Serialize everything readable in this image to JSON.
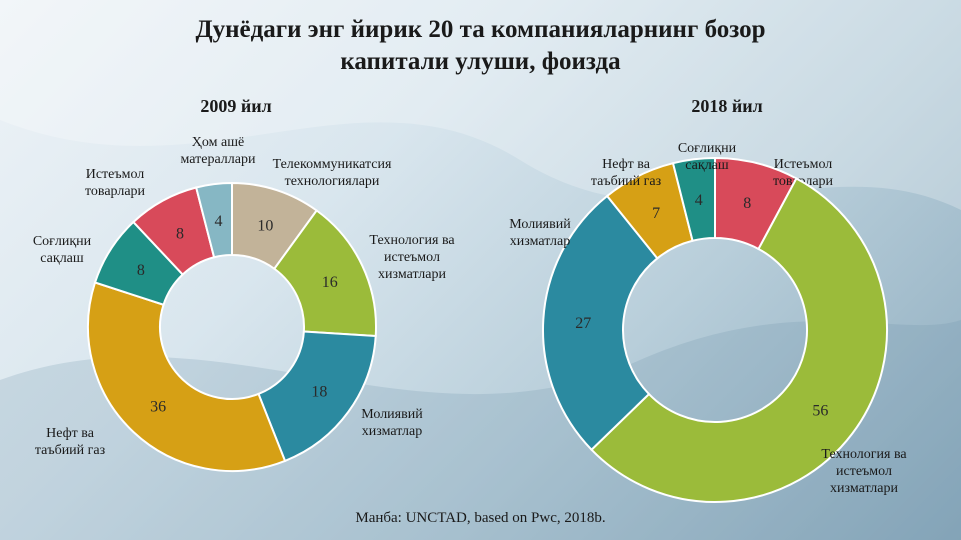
{
  "title": {
    "line1": "Дунёдаги энг йирик 20 та компанияларнинг бозор",
    "line2": "капитали улуши, фоизда"
  },
  "source": "Манба: UNCTAD, based on Pwc, 2018b.",
  "chart_data": [
    {
      "type": "pie",
      "title": "2009 йил",
      "categories": [
        "Телекоммуникатсия технологиялари",
        "Технология ва истеъмол хизматлари",
        "Молиявий хизматлар",
        "Нефт ва таъбиий газ",
        "Соғлиқни сақлаш",
        "Истеъмол товарлари",
        "Ҳом ашё матераллари"
      ],
      "values": [
        10,
        16,
        18,
        36,
        8,
        8,
        4
      ],
      "colors": [
        "#c2b399",
        "#9bbb3a",
        "#2b8aa0",
        "#d6a015",
        "#1f8f86",
        "#d84a5a",
        "#86b7c4"
      ],
      "label_lines": [
        [
          "Телекоммуникатсия",
          "технологиялари"
        ],
        [
          "Технология ва",
          "истеъмол",
          "хизматлари"
        ],
        [
          "Молиявий",
          "хизматлар"
        ],
        [
          "Нефт ва",
          "таъбиий газ"
        ],
        [
          "Соғлиқни",
          "сақлаш"
        ],
        [
          "Истеъмол",
          "товарлари"
        ],
        [
          "Ҳом ашё",
          "матераллари"
        ]
      ]
    },
    {
      "type": "pie",
      "title": "2018 йил",
      "categories": [
        "Истеъмол товарлари",
        "Технология ва истеъмол хизматлари",
        "Молиявий хизматлар",
        "Нефт ва таъбиий газ",
        "Соғлиқни сақлаш"
      ],
      "values": [
        8,
        56,
        27,
        7,
        4
      ],
      "colors": [
        "#d84a5a",
        "#9bbb3a",
        "#2b8aa0",
        "#d6a015",
        "#1f8f86"
      ],
      "label_lines": [
        [
          "Истеъмол",
          "товарлари"
        ],
        [
          "Технология ва",
          "истеъмол",
          "хизматлари"
        ],
        [
          "Молиявий",
          "хизматлар"
        ],
        [
          "Нефт ва",
          "таъбиий газ"
        ],
        [
          "Соғлиқни",
          "сақлаш"
        ]
      ]
    }
  ]
}
